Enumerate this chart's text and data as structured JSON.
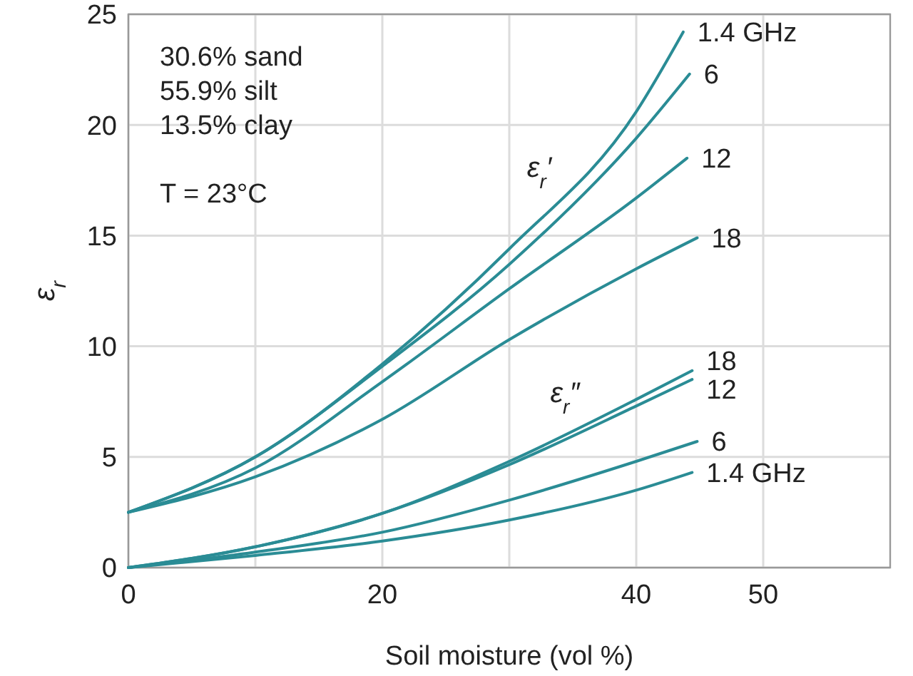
{
  "chart_data": {
    "type": "line",
    "xlabel": "Soil moisture (vol %)",
    "ylabel": "ε$_{r}$",
    "xlim": [
      0,
      60
    ],
    "ylim": [
      0,
      25
    ],
    "xticks": [
      0,
      {
        "value": 10,
        "label": null
      },
      20,
      {
        "value": 30,
        "label": null
      },
      40,
      50
    ],
    "yticks": [
      0,
      5,
      10,
      15,
      20,
      25
    ],
    "grid": true,
    "legend": false,
    "marker": "none",
    "line_style": "solid",
    "annotations": [
      "30.6% sand",
      "55.9% silt",
      "13.5% clay",
      "T = 23°C",
      "ε$_{r}$′",
      "ε$_{r}$″"
    ],
    "series": [
      {
        "name": "1.4 GHz",
        "color": "#2a8c95",
        "x": [
          0,
          10,
          20,
          30,
          40,
          43.7
        ],
        "values": [
          2.5,
          5.0,
          9.2,
          14.4,
          20.6,
          24.2
        ]
      },
      {
        "name": "6",
        "color": "#2a8c95",
        "x": [
          0,
          10,
          20,
          30,
          40,
          44.2
        ],
        "values": [
          2.5,
          5.0,
          9.1,
          13.7,
          19.4,
          22.3
        ]
      },
      {
        "name": "12",
        "color": "#2a8c95",
        "x": [
          0,
          10,
          20,
          30,
          40,
          44
        ],
        "values": [
          2.5,
          4.5,
          8.4,
          12.6,
          16.7,
          18.5
        ]
      },
      {
        "name": "18",
        "color": "#2a8c95",
        "x": [
          0,
          10,
          20,
          30,
          40,
          44.8
        ],
        "values": [
          2.5,
          4.1,
          6.7,
          10.3,
          13.5,
          14.9
        ]
      },
      {
        "name": "18",
        "color": "#2a8c95",
        "x": [
          0,
          10,
          20,
          30,
          40,
          44.4
        ],
        "values": [
          0,
          0.94,
          2.45,
          4.8,
          7.6,
          8.9
        ]
      },
      {
        "name": "12",
        "color": "#2a8c95",
        "x": [
          0,
          10,
          20,
          30,
          40,
          44.4
        ],
        "values": [
          0,
          0.94,
          2.45,
          4.65,
          7.3,
          8.5
        ]
      },
      {
        "name": "6",
        "color": "#2a8c95",
        "x": [
          0,
          10,
          20,
          30,
          40,
          44.8
        ],
        "values": [
          0,
          0.7,
          1.6,
          3.05,
          4.8,
          5.7
        ]
      },
      {
        "name": "1.4 GHz",
        "color": "#2a8c95",
        "x": [
          0,
          10,
          20,
          30,
          40,
          44.4
        ],
        "values": [
          0,
          0.55,
          1.2,
          2.15,
          3.5,
          4.3
        ]
      }
    ]
  }
}
